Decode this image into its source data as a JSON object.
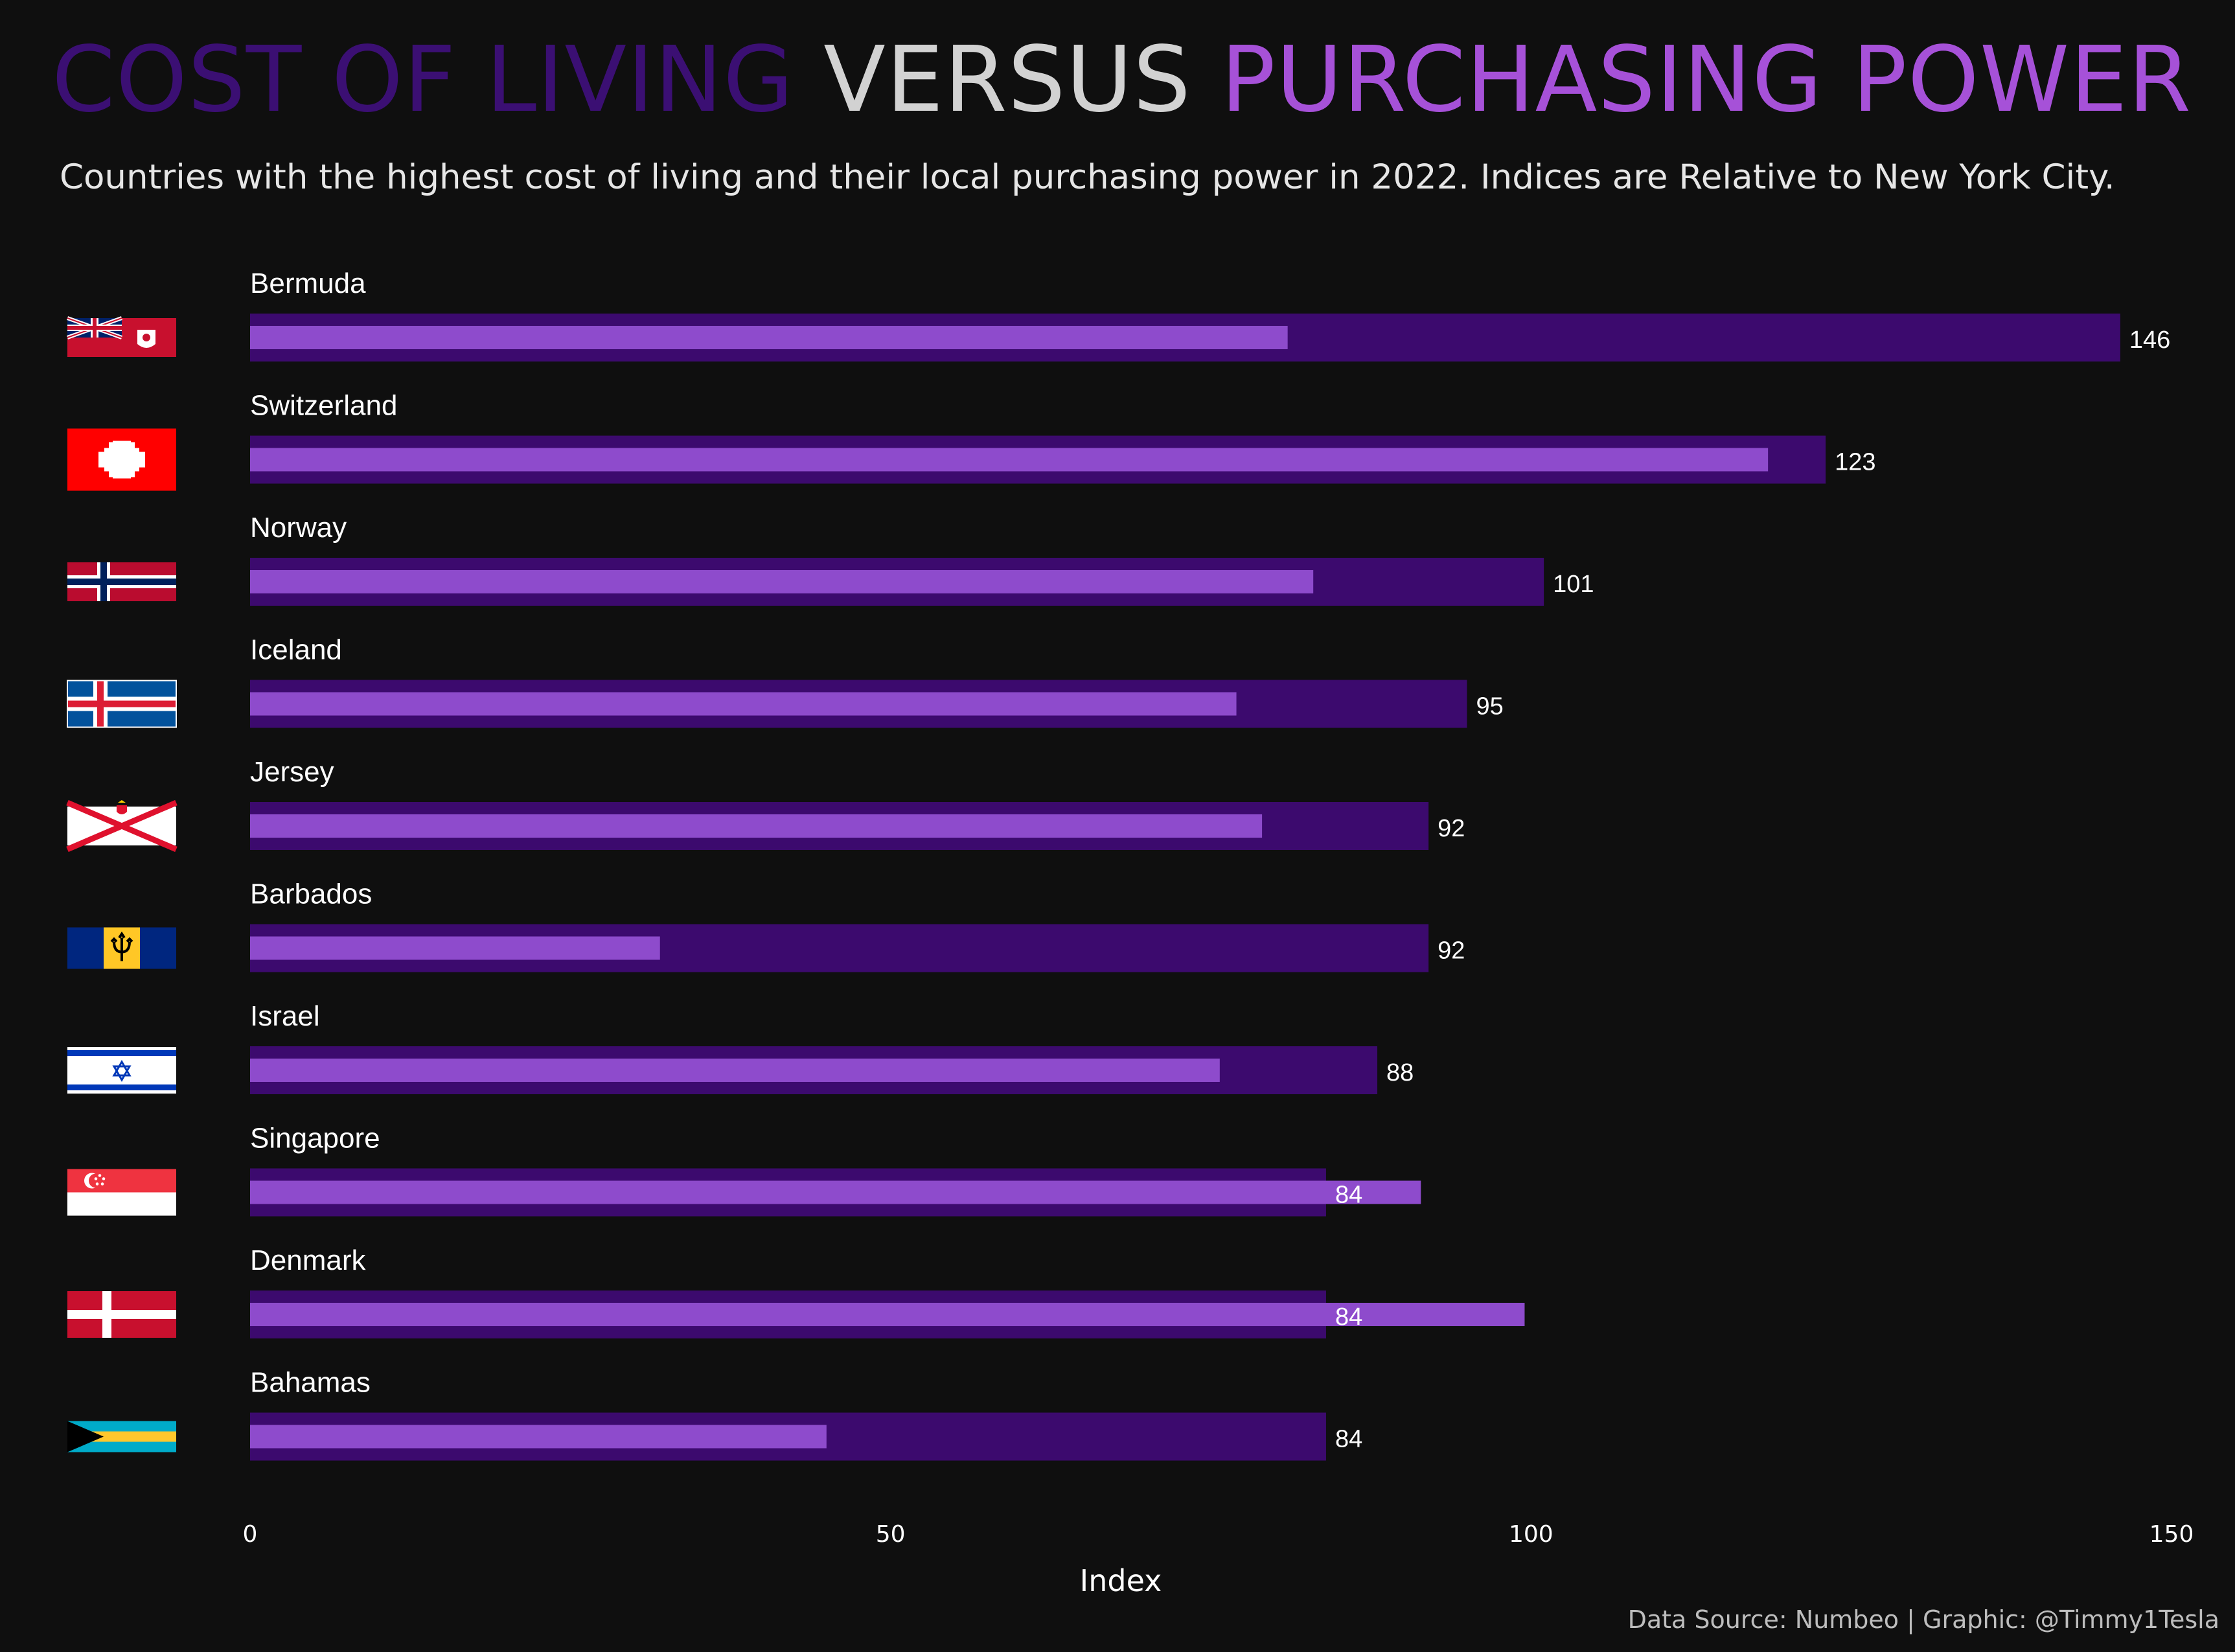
{
  "title": {
    "part1": "COST OF LIVING",
    "part2": "VERSUS",
    "part3": "PURCHASING POWER"
  },
  "subtitle": "Countries with the highest cost of living and their local purchasing power in 2022. Indices are Relative to New York City.",
  "source": "Data Source: Numbeo | Graphic: @Timmy1Tesla",
  "colors": {
    "background": "#0f0f0f",
    "cost_of_living": "#3c0a6e",
    "purchasing_power": "#8e4bcc",
    "title_cost": "#3b0f73",
    "title_versus": "#d2d2d2",
    "title_power": "#a651d8"
  },
  "chart_data": {
    "type": "bar",
    "orientation": "horizontal",
    "categories": [
      "Bermuda",
      "Switzerland",
      "Norway",
      "Iceland",
      "Jersey",
      "Barbados",
      "Israel",
      "Singapore",
      "Denmark",
      "Bahamas"
    ],
    "flag_icons": [
      "bermuda-flag-icon",
      "switzerland-flag-icon",
      "norway-flag-icon",
      "iceland-flag-icon",
      "jersey-flag-icon",
      "barbados-flag-icon",
      "israel-flag-icon",
      "singapore-flag-icon",
      "denmark-flag-icon",
      "bahamas-flag-icon"
    ],
    "series": [
      {
        "values": [
          146,
          123,
          101,
          95,
          92,
          92,
          88,
          84,
          84,
          84
        ]
      },
      {
        "values": [
          81,
          118.5,
          83,
          77,
          79,
          32,
          75.7,
          91.4,
          99.5,
          45
        ]
      }
    ],
    "value_labels": [
      "146",
      "123",
      "101",
      "95",
      "92",
      "92",
      "88",
      "84",
      "84",
      "84"
    ],
    "xlabel": "Index",
    "xlim": [
      0,
      150
    ],
    "xticks": [
      "0",
      "50",
      "100",
      "150"
    ],
    "grid": false
  }
}
